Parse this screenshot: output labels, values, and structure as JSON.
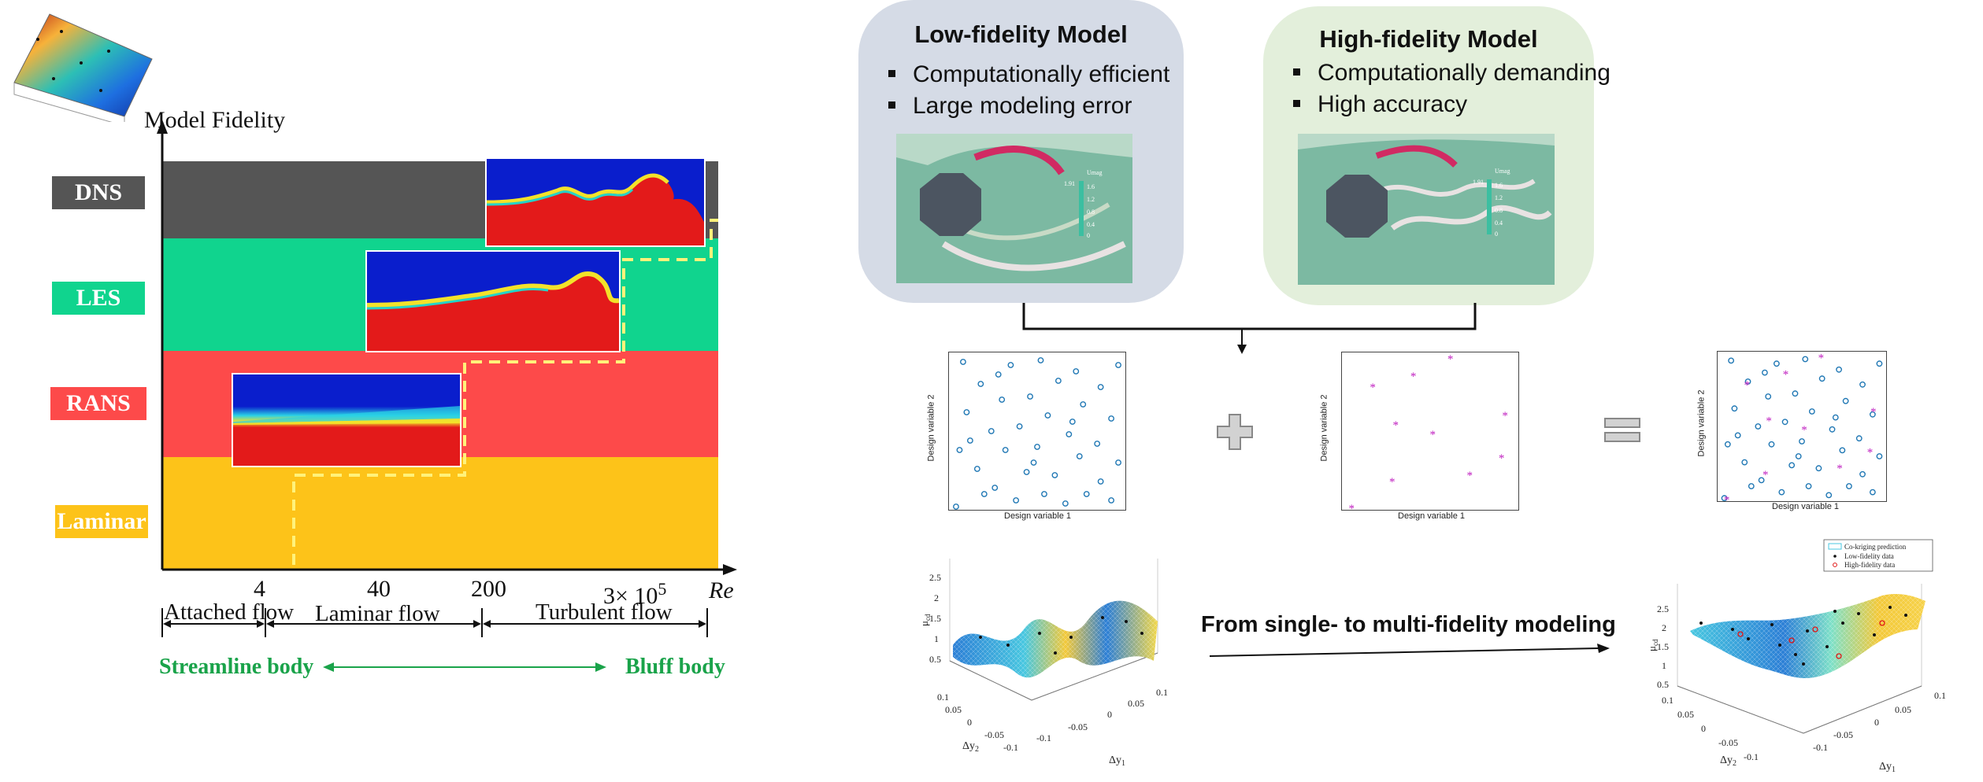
{
  "left_diagram": {
    "y_axis_label": "Model Fidelity",
    "x_axis_label": "Re",
    "levels": [
      {
        "label": "DNS",
        "color": "#555555"
      },
      {
        "label": "LES",
        "color": "#10d48e"
      },
      {
        "label": "RANS",
        "color": "#fd4a4a"
      },
      {
        "label": "Laminar",
        "color": "#fdc319"
      }
    ],
    "re_ticks": [
      "4",
      "40",
      "200",
      "3× 10"
    ],
    "re_tick_exp": "5",
    "regimes": [
      "Attached flow",
      "Laminar flow",
      "Turbulent flow"
    ],
    "body_left": "Streamline body",
    "body_right": "Bluff body"
  },
  "low_fidelity": {
    "title": "Low-fidelity Model",
    "bullets": [
      "Computationally efficient",
      "Large modeling error"
    ],
    "bg": "#d5dbe6",
    "colorbar_label": "Umag",
    "colorbar_ticks": [
      "1.6",
      "1.2",
      "0.8",
      "0.4",
      "0"
    ],
    "colorbar_max": "1.91"
  },
  "high_fidelity": {
    "title": "High-fidelity Model",
    "bullets": [
      "Computationally demanding",
      "High accuracy"
    ],
    "bg": "#e3efdb",
    "colorbar_label": "Umag",
    "colorbar_ticks": [
      "1.6",
      "1.2",
      "0.8",
      "0.4",
      "0"
    ],
    "colorbar_max": "1.91"
  },
  "scatter": {
    "xlabel": "Design variable 1",
    "ylabel": "Design variable 2"
  },
  "bottom": {
    "arrow_text": "From single- to multi-fidelity modeling",
    "surface_left": {
      "zlabel": "μ",
      "zlabel_sub": "cd",
      "z_ticks": [
        "2.5",
        "2",
        "1.5",
        "1",
        "0.5"
      ],
      "y_ticks": [
        "0.1",
        "0.05",
        "0",
        "-0.05",
        "-0.1"
      ],
      "x_ticks": [
        "-0.1",
        "-0.05",
        "0",
        "0.05",
        "0.1"
      ],
      "ylabel": "Δy",
      "ylabel_sub": "2",
      "xlabel": "Δy",
      "xlabel_sub": "1"
    },
    "surface_right": {
      "legend": [
        "Co-kriging prediction",
        "Low-fidelity data",
        "High-fidelity data"
      ],
      "zlabel": "μ",
      "zlabel_sub": "cd",
      "z_ticks": [
        "2.5",
        "2",
        "1.5",
        "1",
        "0.5"
      ],
      "y_ticks": [
        "0.1",
        "0.05",
        "0",
        "-0.05",
        "-0.1"
      ],
      "x_ticks": [
        "-0.1",
        "-0.05",
        "0",
        "0.05",
        "0.1"
      ],
      "ylabel": "Δy",
      "ylabel_sub": "2",
      "xlabel": "Δy",
      "xlabel_sub": "1"
    }
  }
}
